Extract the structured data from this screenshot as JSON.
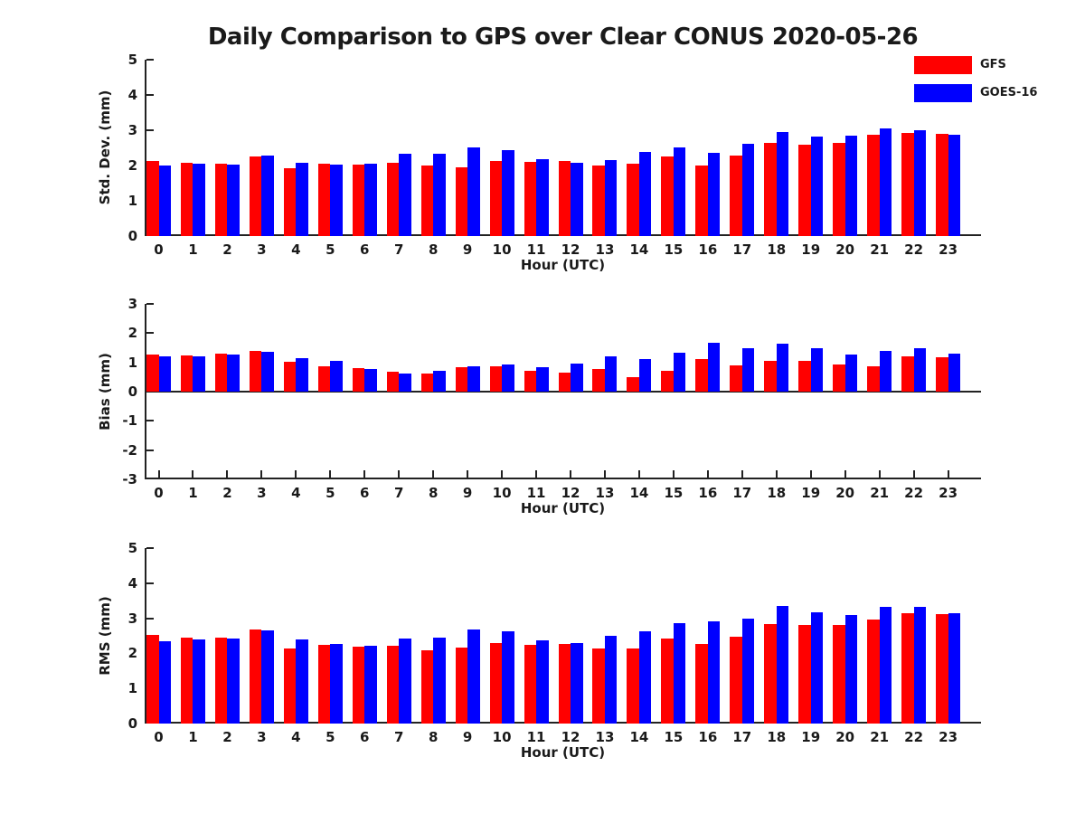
{
  "title": "Daily Comparison to GPS over Clear CONUS 2020-05-26",
  "legend": {
    "items": [
      {
        "label": "GFS",
        "color": "#ff0000"
      },
      {
        "label": "GOES-16",
        "color": "#0000ff"
      }
    ]
  },
  "colors": {
    "gfs": "#ff0000",
    "goes16": "#0000ff",
    "axis": "#222222",
    "text": "#1a1a1a"
  },
  "chart_data": [
    {
      "type": "bar",
      "ylabel": "Std. Dev. (mm)",
      "xlabel": "Hour (UTC)",
      "ylim": [
        0,
        5
      ],
      "yticks": [
        0,
        1,
        2,
        3,
        4,
        5
      ],
      "grid": false,
      "legend_position": "upper-right-outside",
      "categories": [
        0,
        1,
        2,
        3,
        4,
        5,
        6,
        7,
        8,
        9,
        10,
        11,
        12,
        13,
        14,
        15,
        16,
        17,
        18,
        19,
        20,
        21,
        22,
        23
      ],
      "series": [
        {
          "name": "GFS",
          "color": "#ff0000",
          "values": [
            2.13,
            2.07,
            2.05,
            2.25,
            1.93,
            2.05,
            2.02,
            2.07,
            2.0,
            1.96,
            2.12,
            2.09,
            2.12,
            2.0,
            2.05,
            2.26,
            2.0,
            2.29,
            2.64,
            2.6,
            2.65,
            2.86,
            2.92,
            2.89
          ]
        },
        {
          "name": "GOES-16",
          "color": "#0000ff",
          "values": [
            2.0,
            2.05,
            2.02,
            2.28,
            2.08,
            2.02,
            2.05,
            2.33,
            2.33,
            2.51,
            2.43,
            2.19,
            2.08,
            2.16,
            2.38,
            2.51,
            2.35,
            2.61,
            2.94,
            2.82,
            2.85,
            3.05,
            2.99,
            2.88
          ]
        }
      ]
    },
    {
      "type": "bar",
      "ylabel": "Bias (mm)",
      "xlabel": "Hour (UTC)",
      "ylim": [
        -3,
        3
      ],
      "yticks": [
        -3,
        -2,
        -1,
        0,
        1,
        2,
        3
      ],
      "zero_line": true,
      "grid": false,
      "categories": [
        0,
        1,
        2,
        3,
        4,
        5,
        6,
        7,
        8,
        9,
        10,
        11,
        12,
        13,
        14,
        15,
        16,
        17,
        18,
        19,
        20,
        21,
        22,
        23
      ],
      "series": [
        {
          "name": "GFS",
          "color": "#ff0000",
          "values": [
            1.27,
            1.25,
            1.3,
            1.4,
            1.02,
            0.88,
            0.8,
            0.67,
            0.62,
            0.85,
            0.87,
            0.7,
            0.65,
            0.76,
            0.5,
            0.72,
            1.1,
            0.91,
            1.05,
            1.06,
            0.92,
            0.86,
            1.2,
            1.17
          ]
        },
        {
          "name": "GOES-16",
          "color": "#0000ff",
          "values": [
            1.22,
            1.2,
            1.27,
            1.35,
            1.15,
            1.05,
            0.78,
            0.63,
            0.7,
            0.88,
            0.94,
            0.85,
            0.95,
            1.21,
            1.1,
            1.34,
            1.67,
            1.47,
            1.65,
            1.5,
            1.27,
            1.38,
            1.47,
            1.3
          ]
        }
      ]
    },
    {
      "type": "bar",
      "ylabel": "RMS (mm)",
      "xlabel": "Hour (UTC)",
      "ylim": [
        0,
        5
      ],
      "yticks": [
        0,
        1,
        2,
        3,
        4,
        5
      ],
      "grid": false,
      "categories": [
        0,
        1,
        2,
        3,
        4,
        5,
        6,
        7,
        8,
        9,
        10,
        11,
        12,
        13,
        14,
        15,
        16,
        17,
        18,
        19,
        20,
        21,
        22,
        23
      ],
      "series": [
        {
          "name": "GFS",
          "color": "#ff0000",
          "values": [
            2.52,
            2.45,
            2.45,
            2.67,
            2.15,
            2.23,
            2.18,
            2.21,
            2.1,
            2.17,
            2.3,
            2.24,
            2.26,
            2.15,
            2.13,
            2.41,
            2.27,
            2.48,
            2.83,
            2.8,
            2.81,
            2.97,
            3.15,
            3.11
          ]
        },
        {
          "name": "GOES-16",
          "color": "#0000ff",
          "values": [
            2.35,
            2.4,
            2.42,
            2.66,
            2.39,
            2.28,
            2.21,
            2.41,
            2.44,
            2.67,
            2.62,
            2.36,
            2.3,
            2.51,
            2.64,
            2.85,
            2.9,
            3.0,
            3.36,
            3.17,
            3.08,
            3.32,
            3.32,
            3.15
          ]
        }
      ]
    }
  ]
}
